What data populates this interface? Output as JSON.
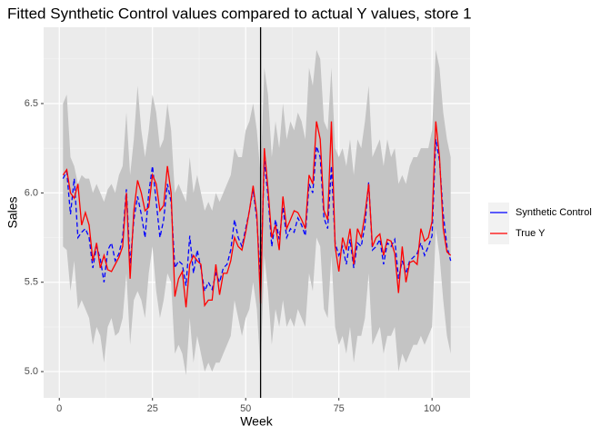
{
  "chart_data": {
    "type": "line",
    "title": "Fitted Synthetic Control values compared to actual Y values, store 1",
    "x_label": "Week",
    "y_label": "Sales",
    "x": [
      1,
      2,
      3,
      4,
      5,
      6,
      7,
      8,
      9,
      10,
      11,
      12,
      13,
      14,
      15,
      16,
      17,
      18,
      19,
      20,
      21,
      22,
      23,
      24,
      25,
      26,
      27,
      28,
      29,
      30,
      31,
      32,
      33,
      34,
      35,
      36,
      37,
      38,
      39,
      40,
      41,
      42,
      43,
      44,
      45,
      46,
      47,
      48,
      49,
      50,
      51,
      52,
      53,
      54,
      55,
      56,
      57,
      58,
      59,
      60,
      61,
      62,
      63,
      64,
      65,
      66,
      67,
      68,
      69,
      70,
      71,
      72,
      73,
      74,
      75,
      76,
      77,
      78,
      79,
      80,
      81,
      82,
      83,
      84,
      85,
      86,
      87,
      88,
      89,
      90,
      91,
      92,
      93,
      94,
      95,
      96,
      97,
      98,
      99,
      100,
      101,
      102,
      103,
      104,
      105
    ],
    "series": [
      {
        "name": "Synthetic Control",
        "color": "#0000ff",
        "dashed": true,
        "values": [
          6.08,
          6.12,
          5.88,
          6.08,
          5.75,
          5.78,
          5.8,
          5.75,
          5.58,
          5.7,
          5.63,
          5.5,
          5.68,
          5.72,
          5.62,
          5.66,
          5.75,
          6.02,
          5.6,
          5.85,
          5.98,
          5.88,
          5.75,
          6.0,
          6.15,
          5.95,
          5.75,
          5.85,
          6.05,
          5.95,
          5.58,
          5.62,
          5.6,
          5.48,
          5.76,
          5.55,
          5.68,
          5.58,
          5.45,
          5.5,
          5.46,
          5.55,
          5.5,
          5.58,
          5.6,
          5.68,
          5.85,
          5.75,
          5.7,
          5.8,
          5.9,
          6.02,
          5.85,
          5.5,
          6.18,
          5.98,
          5.7,
          5.85,
          5.74,
          5.92,
          5.75,
          5.8,
          5.78,
          5.86,
          5.82,
          5.76,
          6.05,
          6.0,
          6.26,
          6.2,
          5.86,
          5.8,
          6.15,
          5.72,
          5.65,
          5.7,
          5.6,
          5.74,
          5.58,
          5.72,
          5.7,
          5.82,
          6.06,
          5.68,
          5.7,
          5.74,
          5.6,
          5.72,
          5.7,
          5.74,
          5.52,
          5.62,
          5.55,
          5.62,
          5.64,
          5.66,
          5.72,
          5.65,
          5.7,
          5.76,
          6.3,
          6.18,
          5.88,
          5.7,
          5.62
        ]
      },
      {
        "name": "True Y",
        "color": "#ff0000",
        "dashed": false,
        "values": [
          6.1,
          6.13,
          6.0,
          5.97,
          6.05,
          5.82,
          5.89,
          5.82,
          5.62,
          5.72,
          5.58,
          5.65,
          5.57,
          5.56,
          5.6,
          5.64,
          5.7,
          6.0,
          5.52,
          5.9,
          6.07,
          6.0,
          5.9,
          5.92,
          6.1,
          6.05,
          5.9,
          5.93,
          6.15,
          6.0,
          5.42,
          5.52,
          5.56,
          5.36,
          5.6,
          5.65,
          5.62,
          5.6,
          5.37,
          5.4,
          5.4,
          5.6,
          5.43,
          5.55,
          5.55,
          5.62,
          5.75,
          5.7,
          5.68,
          5.78,
          5.9,
          6.04,
          5.88,
          5.38,
          6.25,
          6.02,
          5.75,
          5.82,
          5.68,
          5.98,
          5.8,
          5.85,
          5.9,
          5.89,
          5.85,
          5.8,
          6.1,
          6.05,
          6.4,
          6.3,
          5.9,
          5.85,
          6.4,
          5.7,
          5.56,
          5.75,
          5.68,
          5.8,
          5.6,
          5.8,
          5.75,
          5.88,
          6.05,
          5.7,
          5.75,
          5.77,
          5.65,
          5.74,
          5.73,
          5.66,
          5.44,
          5.7,
          5.5,
          5.61,
          5.62,
          5.6,
          5.8,
          5.73,
          5.75,
          5.84,
          6.4,
          6.2,
          5.8,
          5.67,
          5.65
        ]
      }
    ],
    "ribbon": {
      "color": "#c4c4c4",
      "upper": [
        6.5,
        6.55,
        6.2,
        6.15,
        6.05,
        6.1,
        6.08,
        6.08,
        6.0,
        6.05,
        6.0,
        5.95,
        6.02,
        6.05,
        6.0,
        6.1,
        6.15,
        6.45,
        6.1,
        6.3,
        6.6,
        6.35,
        6.2,
        6.35,
        6.55,
        6.45,
        6.25,
        6.3,
        6.5,
        6.35,
        6.0,
        6.05,
        6.0,
        5.95,
        6.2,
        6.0,
        6.1,
        6.0,
        5.9,
        5.95,
        5.9,
        6.0,
        5.95,
        6.0,
        6.05,
        6.1,
        6.25,
        6.2,
        6.2,
        6.35,
        6.4,
        6.5,
        6.35,
        6.1,
        6.7,
        6.55,
        6.2,
        6.4,
        6.25,
        6.5,
        6.3,
        6.4,
        6.35,
        6.45,
        6.4,
        6.3,
        6.7,
        6.6,
        6.8,
        6.75,
        6.4,
        6.35,
        6.7,
        6.25,
        6.2,
        6.25,
        6.15,
        6.3,
        6.1,
        6.3,
        6.25,
        6.4,
        6.6,
        6.2,
        6.25,
        6.3,
        6.15,
        6.3,
        6.2,
        6.25,
        6.05,
        6.1,
        6.05,
        6.15,
        6.2,
        6.2,
        6.25,
        6.25,
        6.25,
        6.35,
        6.8,
        6.7,
        6.45,
        6.3,
        6.2
      ],
      "lower": [
        5.7,
        5.68,
        5.45,
        5.62,
        5.35,
        5.4,
        5.35,
        5.3,
        5.15,
        5.25,
        5.2,
        5.05,
        5.25,
        5.3,
        5.2,
        5.22,
        5.3,
        5.55,
        5.15,
        5.4,
        5.45,
        5.4,
        5.3,
        5.55,
        5.7,
        5.45,
        5.3,
        5.4,
        5.55,
        5.5,
        5.1,
        5.15,
        5.1,
        4.98,
        5.3,
        5.05,
        5.2,
        5.1,
        5.0,
        5.05,
        5.0,
        5.05,
        5.05,
        5.1,
        5.15,
        5.2,
        5.4,
        5.3,
        5.2,
        5.3,
        5.35,
        5.5,
        5.35,
        5.0,
        5.65,
        5.45,
        5.15,
        5.35,
        5.25,
        5.4,
        5.25,
        5.3,
        5.25,
        5.35,
        5.3,
        5.25,
        5.55,
        5.45,
        5.75,
        5.7,
        5.35,
        5.3,
        5.65,
        5.25,
        5.15,
        5.2,
        5.1,
        5.25,
        5.05,
        5.2,
        5.2,
        5.3,
        5.55,
        5.15,
        5.2,
        5.25,
        5.1,
        5.2,
        5.2,
        5.25,
        5.0,
        5.1,
        5.05,
        5.1,
        5.15,
        5.15,
        5.2,
        5.15,
        5.2,
        5.25,
        5.8,
        5.65,
        5.4,
        5.2,
        5.1
      ]
    },
    "vline": 54,
    "xlim": [
      -4.2,
      110.2
    ],
    "xticks": [
      0,
      25,
      50,
      75,
      100
    ],
    "xminor": [
      12.5,
      37.5,
      62.5,
      87.5,
      100.5
    ],
    "ylim": [
      4.853,
      6.927
    ],
    "yticks": [
      {
        "value": 5,
        "label": "5.0"
      },
      5.5,
      {
        "value": 6,
        "label": "6.0"
      },
      6.5
    ],
    "yminor": [
      5.25,
      5.75,
      6.25,
      6.75
    ],
    "grid": true,
    "legend": "right"
  }
}
